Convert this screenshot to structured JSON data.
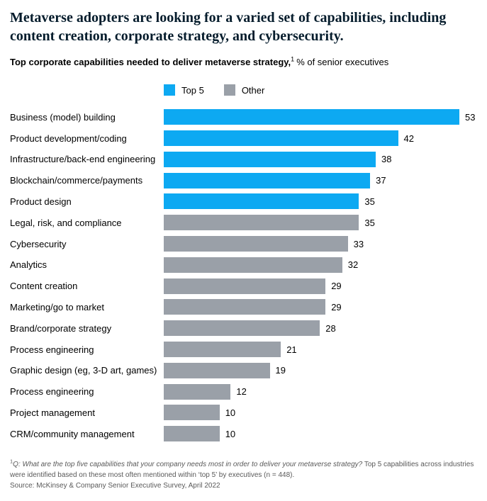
{
  "header": {
    "title": "Metaverse adopters are looking for a varied set of capabilities, including content creation, corporate strategy, and cybersecurity."
  },
  "subtitle": {
    "bold": "Top corporate capabilities needed to deliver metaverse strategy,",
    "footnote_marker": "1",
    "regular": "% of senior executives"
  },
  "legend": {
    "items": [
      {
        "label": "Top 5",
        "color": "#0DA9F2"
      },
      {
        "label": "Other",
        "color": "#9AA0A8"
      }
    ]
  },
  "chart_data": {
    "type": "bar",
    "orientation": "horizontal",
    "title": "Top corporate capabilities needed to deliver metaverse strategy, % of senior executives",
    "categories": [
      "Business (model) building",
      "Product development/coding",
      "Infrastructure/back-end engineering",
      "Blockchain/commerce/payments",
      "Product design",
      "Legal, risk, and compliance",
      "Cybersecurity",
      "Analytics",
      "Content creation",
      "Marketing/go to market",
      "Brand/corporate strategy",
      "Process engineering",
      "Graphic design (eg, 3-D art, games)",
      "Process engineering",
      "Project management",
      "CRM/community management"
    ],
    "values": [
      53,
      42,
      38,
      37,
      35,
      35,
      33,
      32,
      29,
      29,
      28,
      21,
      19,
      12,
      10,
      10
    ],
    "groups": [
      "Top 5",
      "Top 5",
      "Top 5",
      "Top 5",
      "Top 5",
      "Other",
      "Other",
      "Other",
      "Other",
      "Other",
      "Other",
      "Other",
      "Other",
      "Other",
      "Other",
      "Other"
    ],
    "series": [
      {
        "name": "Top 5",
        "color": "#0DA9F2"
      },
      {
        "name": "Other",
        "color": "#9AA0A8"
      }
    ],
    "xlim": [
      0,
      53
    ],
    "value_labels": true,
    "grid": false,
    "legend_position": "top"
  },
  "footnote": {
    "marker": "1",
    "question_italic": "Q: What are the top five capabilities that your company needs most in order to deliver your metaverse strategy?",
    "rest": "Top 5 capabilities across industries were identified based on these most often mentioned within ‘top 5’ by executives (n = 448)."
  },
  "source": "Source: McKinsey & Company Senior Executive Survey, April 2022",
  "colors": {
    "top5": "#0DA9F2",
    "other": "#9AA0A8",
    "title_text": "#051C2C",
    "body_text": "#000000",
    "footnote_text": "#595959",
    "background": "#FFFFFF"
  }
}
